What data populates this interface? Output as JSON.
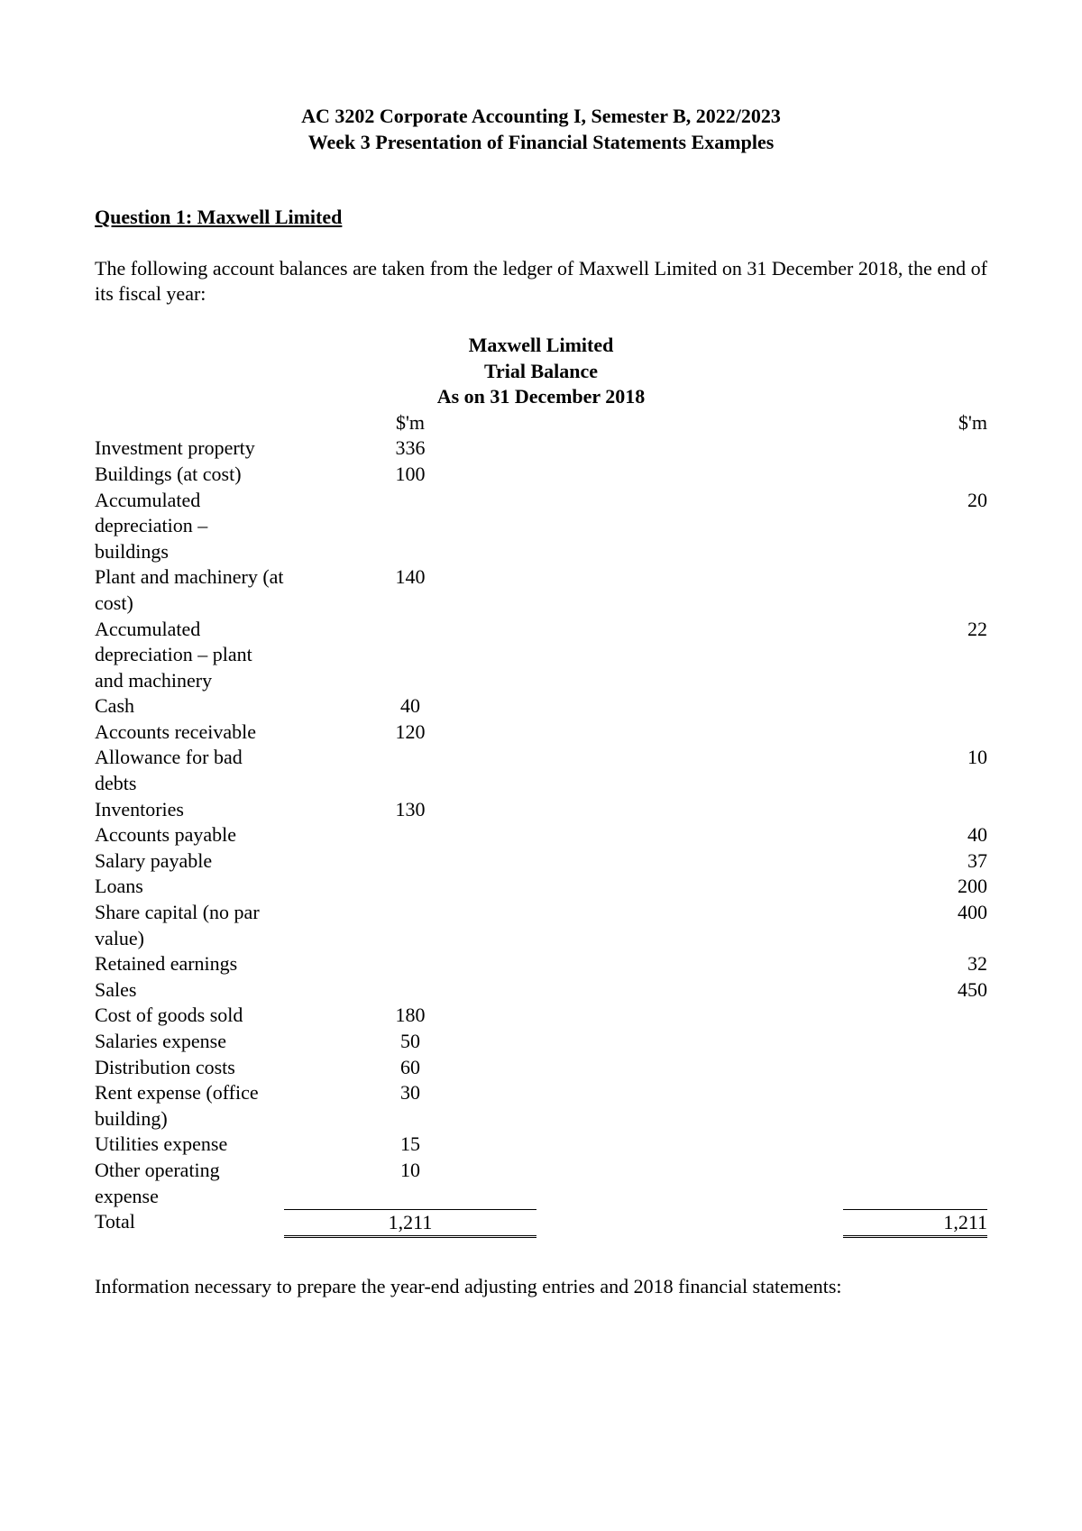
{
  "header": {
    "line1": "AC 3202 Corporate Accounting I, Semester B, 2022/2023",
    "line2": "Week 3 Presentation of Financial Statements Examples"
  },
  "question_heading": "Question 1: Maxwell Limited",
  "intro_text": "The following account balances are taken from the ledger of Maxwell Limited on 31 December 2018, the end of its fiscal year:",
  "trial_balance": {
    "title_line1": "Maxwell Limited",
    "title_line2": "Trial Balance",
    "title_line3": "As on 31 December 2018",
    "col_debit_header": "$'m",
    "col_credit_header": "$'m",
    "rows": [
      {
        "label": "Investment property",
        "debit": "336",
        "credit": ""
      },
      {
        "label": "Buildings (at cost)",
        "debit": "100",
        "credit": ""
      },
      {
        "label": "Accumulated depreciation – buildings",
        "debit": "",
        "credit": "20"
      },
      {
        "label": "Plant and machinery (at cost)",
        "debit": "140",
        "credit": ""
      },
      {
        "label": "Accumulated depreciation – plant and machinery",
        "debit": "",
        "credit": "22"
      },
      {
        "label": "Cash",
        "debit": "40",
        "credit": ""
      },
      {
        "label": "Accounts receivable",
        "debit": "120",
        "credit": ""
      },
      {
        "label": "Allowance for bad debts",
        "debit": "",
        "credit": "10"
      },
      {
        "label": "Inventories",
        "debit": "130",
        "credit": ""
      },
      {
        "label": "Accounts payable",
        "debit": "",
        "credit": "40"
      },
      {
        "label": "Salary payable",
        "debit": "",
        "credit": "37"
      },
      {
        "label": "Loans",
        "debit": "",
        "credit": "200"
      },
      {
        "label": "Share capital (no par value)",
        "debit": "",
        "credit": "400"
      },
      {
        "label": "Retained earnings",
        "debit": "",
        "credit": "32"
      },
      {
        "label": "Sales",
        "debit": "",
        "credit": "450"
      },
      {
        "label": "Cost of goods sold",
        "debit": "180",
        "credit": ""
      },
      {
        "label": "Salaries expense",
        "debit": "50",
        "credit": ""
      },
      {
        "label": "Distribution costs",
        "debit": "60",
        "credit": ""
      },
      {
        "label": "Rent expense (office building)",
        "debit": "30",
        "credit": ""
      },
      {
        "label": "Utilities expense",
        "debit": "15",
        "credit": ""
      },
      {
        "label": "Other operating expense",
        "debit": "10",
        "credit": ""
      }
    ],
    "total_label": "Total",
    "total_debit": "1,211",
    "total_credit": "1,211"
  },
  "closing_text": "Information necessary to prepare the year-end adjusting entries and 2018 financial statements:"
}
